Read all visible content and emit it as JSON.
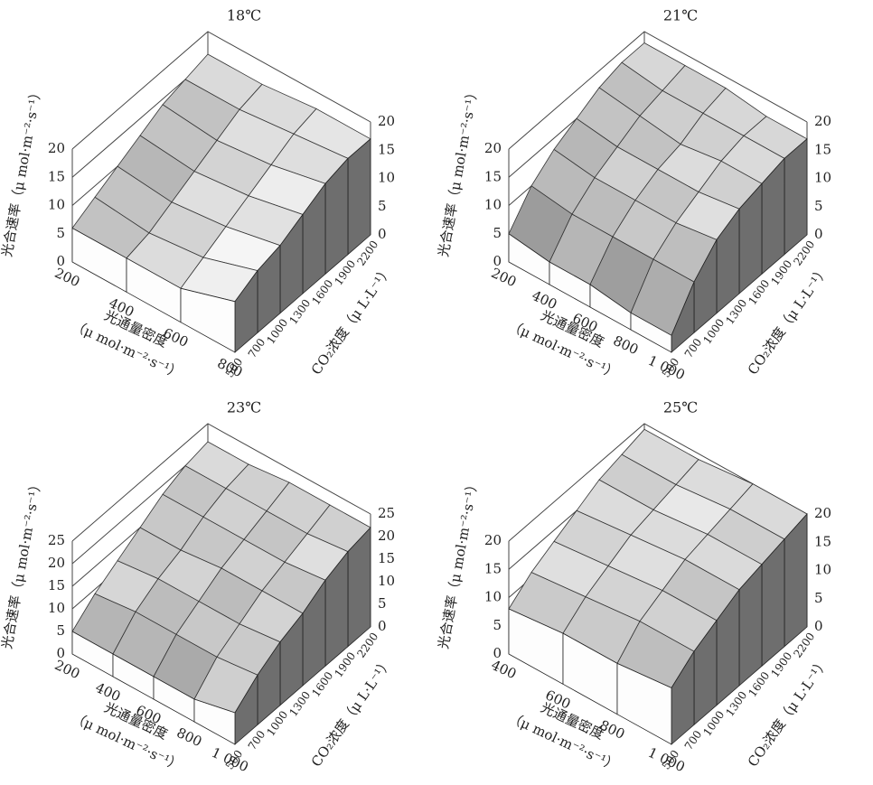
{
  "chart_data": [
    {
      "type": "surface3d",
      "title": "18℃",
      "x": [
        "200",
        "400",
        "600",
        "800"
      ],
      "y": [
        "500",
        "700",
        "1000",
        "1300",
        "1600",
        "1900",
        "2200"
      ],
      "xlabel": [
        "光通量密度",
        "（μ mol·m⁻²·s⁻¹）"
      ],
      "ylabel": "CO₂浓度（μ L·L⁻¹）",
      "zlabel": "光合速率（μ mol·m⁻²·s⁻¹）",
      "values": [
        [
          6,
          8,
          10,
          12,
          14,
          15,
          16
        ],
        [
          6,
          7,
          9,
          11,
          13,
          15,
          16
        ],
        [
          6,
          8,
          10,
          12,
          14,
          16,
          17
        ],
        [
          9,
          11,
          12,
          14,
          16,
          17,
          17
        ]
      ],
      "zlim": [
        0,
        20
      ],
      "zticks": [
        0,
        5,
        10,
        15,
        20
      ]
    },
    {
      "type": "surface3d",
      "title": "21℃",
      "x": [
        "200",
        "400",
        "600",
        "800",
        "1 000"
      ],
      "y": [
        "500",
        "700",
        "1000",
        "1300",
        "1600",
        "1900",
        "2200"
      ],
      "xlabel": [
        "光通量密度",
        "（μ mol·m⁻²·s⁻¹）"
      ],
      "ylabel": "CO₂浓度（μ L·L⁻¹）",
      "zlabel": "光合速率（μ mol·m⁻²·s⁻¹）",
      "values": [
        [
          5,
          10,
          13,
          15,
          17,
          18,
          18
        ],
        [
          4,
          9,
          12,
          14,
          16,
          17,
          18
        ],
        [
          4,
          9,
          12,
          14,
          15,
          17,
          18
        ],
        [
          3,
          9,
          12,
          14,
          16,
          17,
          17
        ],
        [
          3,
          9,
          13,
          15,
          16,
          17,
          17
        ]
      ],
      "zlim": [
        0,
        20
      ],
      "zticks": [
        0,
        5,
        10,
        15,
        20
      ]
    },
    {
      "type": "surface3d",
      "title": "23℃",
      "x": [
        "200",
        "400",
        "600",
        "800",
        "1 000"
      ],
      "y": [
        "500",
        "700",
        "1000",
        "1300",
        "1600",
        "1900",
        "2200"
      ],
      "xlabel": [
        "光通量密度",
        "（μ mol·m⁻²·s⁻¹）"
      ],
      "ylabel": "CO₂浓度（μ L·L⁻¹）",
      "zlabel": "光合速率（μ mol·m⁻²·s⁻¹）",
      "values": [
        [
          5,
          9,
          12,
          15,
          18,
          20,
          21
        ],
        [
          5,
          10,
          13,
          15,
          18,
          20,
          21
        ],
        [
          5,
          10,
          13,
          16,
          18,
          20,
          22
        ],
        [
          5,
          10,
          13,
          16,
          18,
          20,
          22
        ],
        [
          7,
          11,
          14,
          16,
          19,
          21,
          22
        ]
      ],
      "zlim": [
        0,
        25
      ],
      "zticks": [
        0,
        5,
        10,
        15,
        20,
        25
      ]
    },
    {
      "type": "surface3d",
      "title": "25℃",
      "x": [
        "400",
        "600",
        "800",
        "1 000"
      ],
      "y": [
        "500",
        "700",
        "1000",
        "1300",
        "1600",
        "1900",
        "2200"
      ],
      "xlabel": [
        "光通量密度",
        "（μ mol·m⁻²·s⁻¹）"
      ],
      "ylabel": "CO₂浓度（μ L·L⁻¹）",
      "zlabel": "光合速率（μ mol·m⁻²·s⁻¹）",
      "values": [
        [
          8,
          11,
          13,
          15,
          17,
          18,
          19
        ],
        [
          9,
          12,
          14,
          16,
          17,
          18,
          19
        ],
        [
          9,
          13,
          15,
          17,
          18,
          19,
          20
        ],
        [
          10,
          13,
          15,
          17,
          18,
          19,
          20
        ]
      ],
      "zlim": [
        0,
        20
      ],
      "zticks": [
        0,
        5,
        10,
        15,
        20
      ]
    }
  ]
}
